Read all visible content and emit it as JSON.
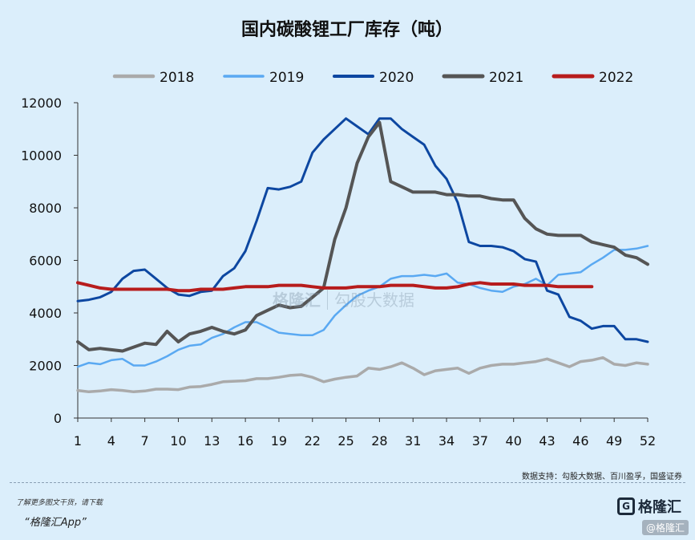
{
  "chart_data": {
    "type": "line",
    "title": "国内碳酸锂工厂库存（吨）",
    "xlabel": "",
    "ylabel": "",
    "x_ticks": [
      1,
      4,
      7,
      10,
      13,
      16,
      19,
      22,
      25,
      28,
      31,
      34,
      37,
      40,
      43,
      46,
      49,
      52
    ],
    "y_ticks": [
      0,
      2000,
      4000,
      6000,
      8000,
      10000,
      12000
    ],
    "xlim": [
      1,
      52
    ],
    "ylim": [
      0,
      12000
    ],
    "legend_position": "top",
    "series": [
      {
        "name": "2018",
        "color": "#aaaaaa",
        "width": 3.5,
        "values": [
          1050,
          1000,
          1030,
          1080,
          1050,
          1000,
          1030,
          1100,
          1100,
          1080,
          1180,
          1200,
          1280,
          1380,
          1400,
          1420,
          1500,
          1500,
          1550,
          1620,
          1650,
          1550,
          1380,
          1480,
          1550,
          1600,
          1900,
          1850,
          1950,
          2100,
          1900,
          1650,
          1800,
          1850,
          1900,
          1700,
          1900,
          2000,
          2050,
          2050,
          2100,
          2150,
          2250,
          2100,
          1950,
          2150,
          2200,
          2300,
          2050,
          2000,
          2100,
          2050
        ]
      },
      {
        "name": "2019",
        "color": "#5aa9f2",
        "width": 2.5,
        "values": [
          1950,
          2100,
          2050,
          2200,
          2250,
          2000,
          2000,
          2150,
          2350,
          2600,
          2750,
          2800,
          3050,
          3200,
          3450,
          3650,
          3650,
          3450,
          3250,
          3200,
          3150,
          3150,
          3350,
          3900,
          4300,
          4650,
          4850,
          5000,
          5300,
          5400,
          5400,
          5450,
          5400,
          5500,
          5150,
          5100,
          4950,
          4850,
          4800,
          5000,
          5100,
          5300,
          5050,
          5450,
          5500,
          5550,
          5850,
          6100,
          6400,
          6400,
          6450,
          6550
        ]
      },
      {
        "name": "2020",
        "color": "#0d47a1",
        "width": 3,
        "values": [
          4450,
          4500,
          4600,
          4800,
          5300,
          5600,
          5650,
          5300,
          4950,
          4700,
          4650,
          4800,
          4850,
          5400,
          5700,
          6350,
          7500,
          8750,
          8700,
          8800,
          9000,
          10100,
          10600,
          11000,
          11400,
          11100,
          10800,
          11400,
          11400,
          11000,
          10700,
          10400,
          9600,
          9100,
          8200,
          6700,
          6550,
          6550,
          6500,
          6350,
          6050,
          5950,
          4850,
          4700,
          3850,
          3700,
          3400,
          3500,
          3500,
          3000,
          3000,
          2900
        ]
      },
      {
        "name": "2021",
        "color": "#555555",
        "width": 4,
        "values": [
          2900,
          2600,
          2650,
          2600,
          2550,
          2700,
          2850,
          2800,
          3300,
          2900,
          3200,
          3300,
          3450,
          3300,
          3200,
          3350,
          3900,
          4100,
          4300,
          4200,
          4250,
          4600,
          4950,
          6800,
          8000,
          9700,
          10700,
          11250,
          9000,
          8800,
          8600,
          8600,
          8600,
          8500,
          8500,
          8450,
          8450,
          8350,
          8300,
          8300,
          7600,
          7200,
          7000,
          6950,
          6950,
          6950,
          6700,
          6600,
          6500,
          6200,
          6100,
          5850
        ]
      },
      {
        "name": "2022",
        "color": "#b71c1c",
        "width": 4,
        "values": [
          5150,
          5050,
          4950,
          4900,
          4900,
          4900,
          4900,
          4900,
          4900,
          4850,
          4850,
          4900,
          4900,
          4900,
          4950,
          5000,
          5000,
          5000,
          5050,
          5050,
          5050,
          5000,
          4950,
          4950,
          4950,
          5000,
          5000,
          5000,
          5050,
          5050,
          5050,
          5000,
          4950,
          4950,
          5000,
          5100,
          5150,
          5100,
          5100,
          5100,
          5050,
          5050,
          5050,
          5000,
          5000,
          5000,
          5000
        ]
      }
    ]
  },
  "footer": {
    "source": "数据支持：勾股大数据、百川盈孚，国盛证券",
    "prompt": "了解更多图文干货，请下载",
    "app": "“格隆汇App”",
    "brand": "格隆汇",
    "brand_mark": "G",
    "corner": "@格隆汇"
  },
  "watermark": {
    "brand": "格隆汇",
    "partner": "勾股大数据"
  }
}
